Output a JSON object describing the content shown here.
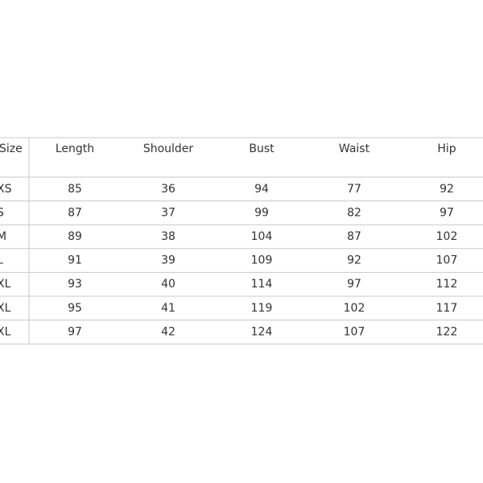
{
  "table": {
    "header": [
      "Size",
      "Length",
      "Shoulder",
      "Bust",
      "Waist",
      "Hip"
    ],
    "rows": [
      [
        "XS",
        85,
        36,
        94,
        77,
        92
      ],
      [
        "S",
        87,
        37,
        99,
        82,
        97
      ],
      [
        "M",
        89,
        38,
        104,
        87,
        102
      ],
      [
        "L",
        91,
        39,
        109,
        92,
        107
      ],
      [
        "XL",
        93,
        40,
        114,
        97,
        112
      ],
      [
        "XL",
        95,
        41,
        119,
        102,
        117
      ],
      [
        "XL",
        97,
        42,
        124,
        107,
        122
      ]
    ]
  }
}
